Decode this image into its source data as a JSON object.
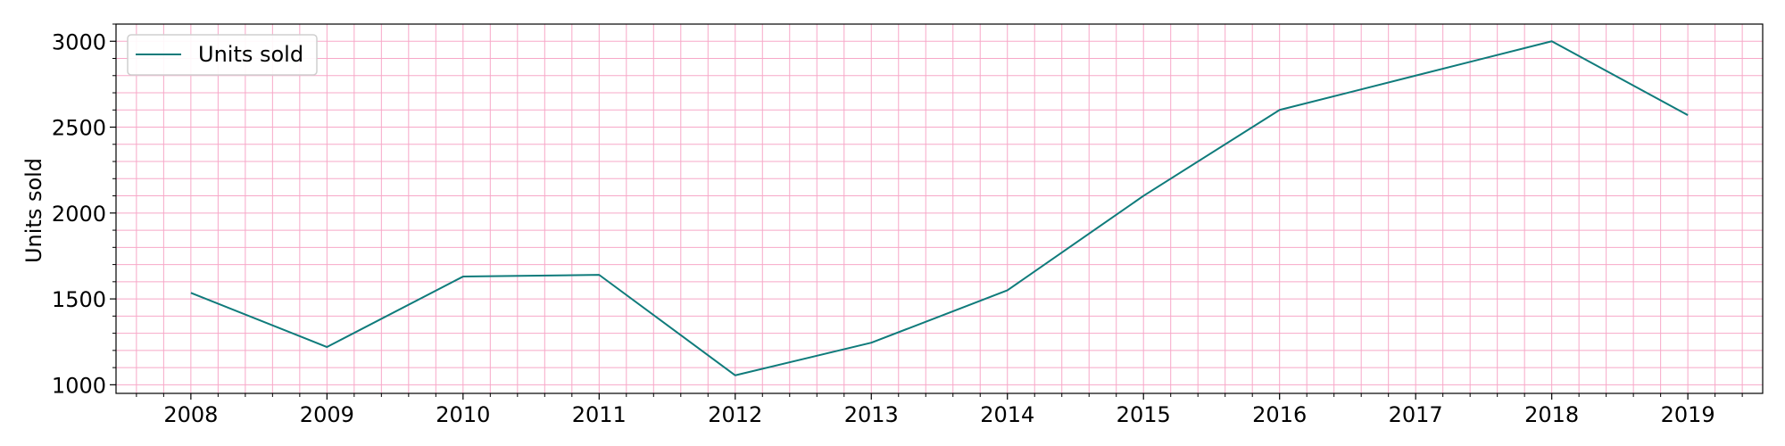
{
  "chart_data": {
    "type": "line",
    "title": "",
    "xlabel": "",
    "ylabel": "Units sold",
    "x": [
      2008,
      2009,
      2010,
      2011,
      2012,
      2013,
      2014,
      2015,
      2016,
      2017,
      2018,
      2019
    ],
    "series": [
      {
        "name": "Units sold",
        "color": "#0f7b7b",
        "values": [
          1535,
          1220,
          1630,
          1640,
          1055,
          1245,
          1550,
          2100,
          2600,
          2800,
          3000,
          2570
        ]
      }
    ],
    "xlim": [
      2007.45,
      2019.55
    ],
    "ylim": [
      950,
      3100
    ],
    "xticks": [
      2008,
      2009,
      2010,
      2011,
      2012,
      2013,
      2014,
      2015,
      2016,
      2017,
      2018,
      2019
    ],
    "yticks": [
      1000,
      1500,
      2000,
      2500,
      3000
    ],
    "grid": true,
    "minor_grid": true,
    "grid_color": "#f7a8c8",
    "legend_position": "top-left"
  }
}
